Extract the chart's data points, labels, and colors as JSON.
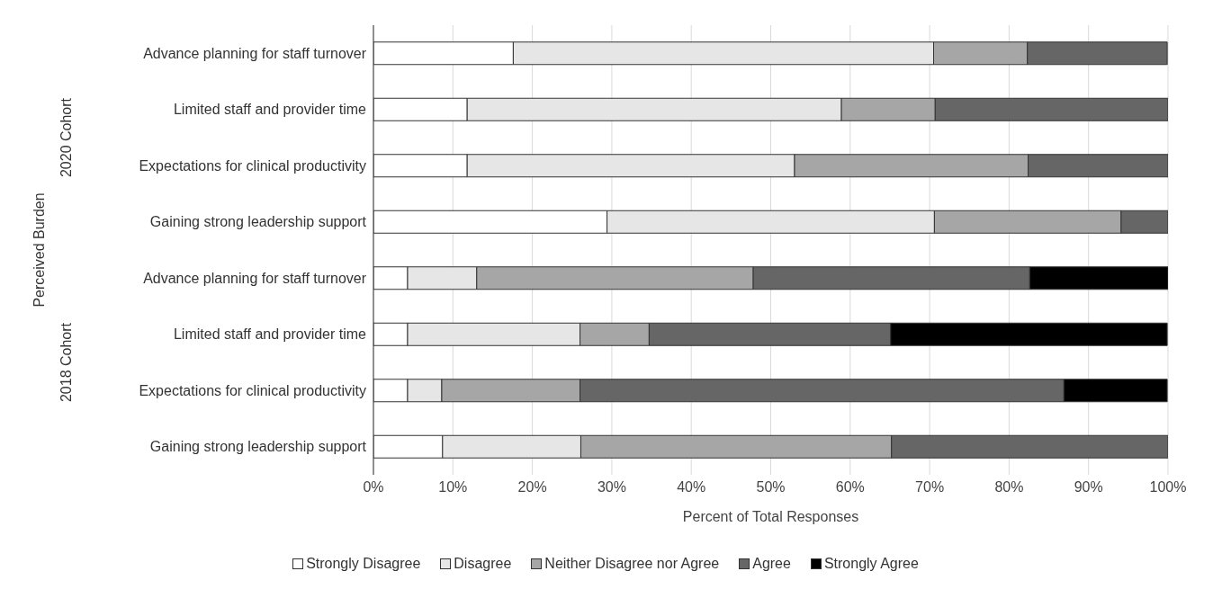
{
  "chart_data": {
    "type": "bar",
    "orientation": "horizontal",
    "stacked": true,
    "xlabel": "Percent of Total Responses",
    "annotations": [
      "Perceived Burden",
      "2020 Cohort",
      "2018 Cohort"
    ],
    "categories": [
      "Advance planning for staff turnover",
      "Limited staff and provider time",
      "Expectations for clinical productivity",
      "Gaining strong leadership support",
      "Advance planning for staff turnover",
      "Limited staff and provider time",
      "Expectations for clinical productivity",
      "Gaining strong leadership support"
    ],
    "series": [
      {
        "name": "Strongly Disagree",
        "color": "#ffffff",
        "values": [
          17.6,
          11.8,
          11.8,
          29.4,
          4.3,
          4.3,
          4.3,
          8.7
        ]
      },
      {
        "name": "Disagree",
        "color": "#e6e6e6",
        "values": [
          52.9,
          47.1,
          41.2,
          41.2,
          8.7,
          21.7,
          4.3,
          17.4
        ]
      },
      {
        "name": "Neither Disagree nor Agree",
        "color": "#a6a6a6",
        "values": [
          11.8,
          11.8,
          29.4,
          23.5,
          34.8,
          8.7,
          17.4,
          39.1
        ]
      },
      {
        "name": "Agree",
        "color": "#666666",
        "values": [
          17.6,
          29.4,
          17.6,
          5.9,
          34.8,
          30.4,
          60.9,
          34.8
        ]
      },
      {
        "name": "Strongly Agree",
        "color": "#000000",
        "values": [
          0,
          0,
          0,
          0,
          17.4,
          34.8,
          13.0,
          0
        ]
      }
    ],
    "xlim": [
      0,
      100
    ],
    "xticks": [
      {
        "value": 0,
        "label": "0%"
      },
      {
        "value": 10,
        "label": "10%"
      },
      {
        "value": 20,
        "label": "20%"
      },
      {
        "value": 30,
        "label": "30%"
      },
      {
        "value": 40,
        "label": "40%"
      },
      {
        "value": 50,
        "label": "50%"
      },
      {
        "value": 60,
        "label": "60%"
      },
      {
        "value": 70,
        "label": "70%"
      },
      {
        "value": 80,
        "label": "80%"
      },
      {
        "value": 90,
        "label": "90%"
      },
      {
        "value": 100,
        "label": "100%"
      }
    ],
    "grid": "x",
    "legend": "bottom"
  }
}
